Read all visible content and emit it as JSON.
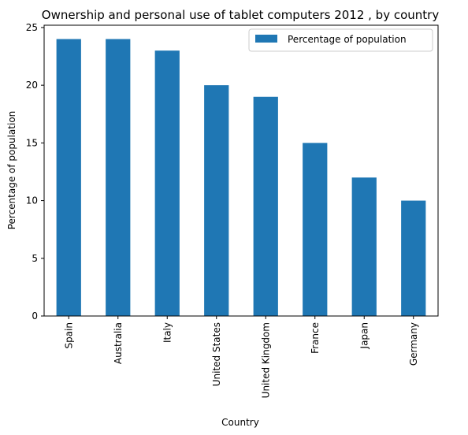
{
  "chart_data": {
    "type": "bar",
    "title": "Ownership and personal use of tablet computers 2012 , by country",
    "xlabel": "Country",
    "ylabel": "Percentage of population",
    "categories": [
      "Spain",
      "Australia",
      "Italy",
      "United States",
      "United Kingdom",
      "France",
      "Japan",
      "Germany"
    ],
    "series": [
      {
        "name": "Percentage of population",
        "values": [
          24,
          24,
          23,
          20,
          19,
          15,
          12,
          10
        ]
      }
    ],
    "ylim": [
      0,
      25.2
    ],
    "yticks": [
      0,
      5,
      10,
      15,
      20,
      25
    ],
    "grid": false,
    "legend_position": "top-right",
    "bar_color": "#1f77b4"
  }
}
